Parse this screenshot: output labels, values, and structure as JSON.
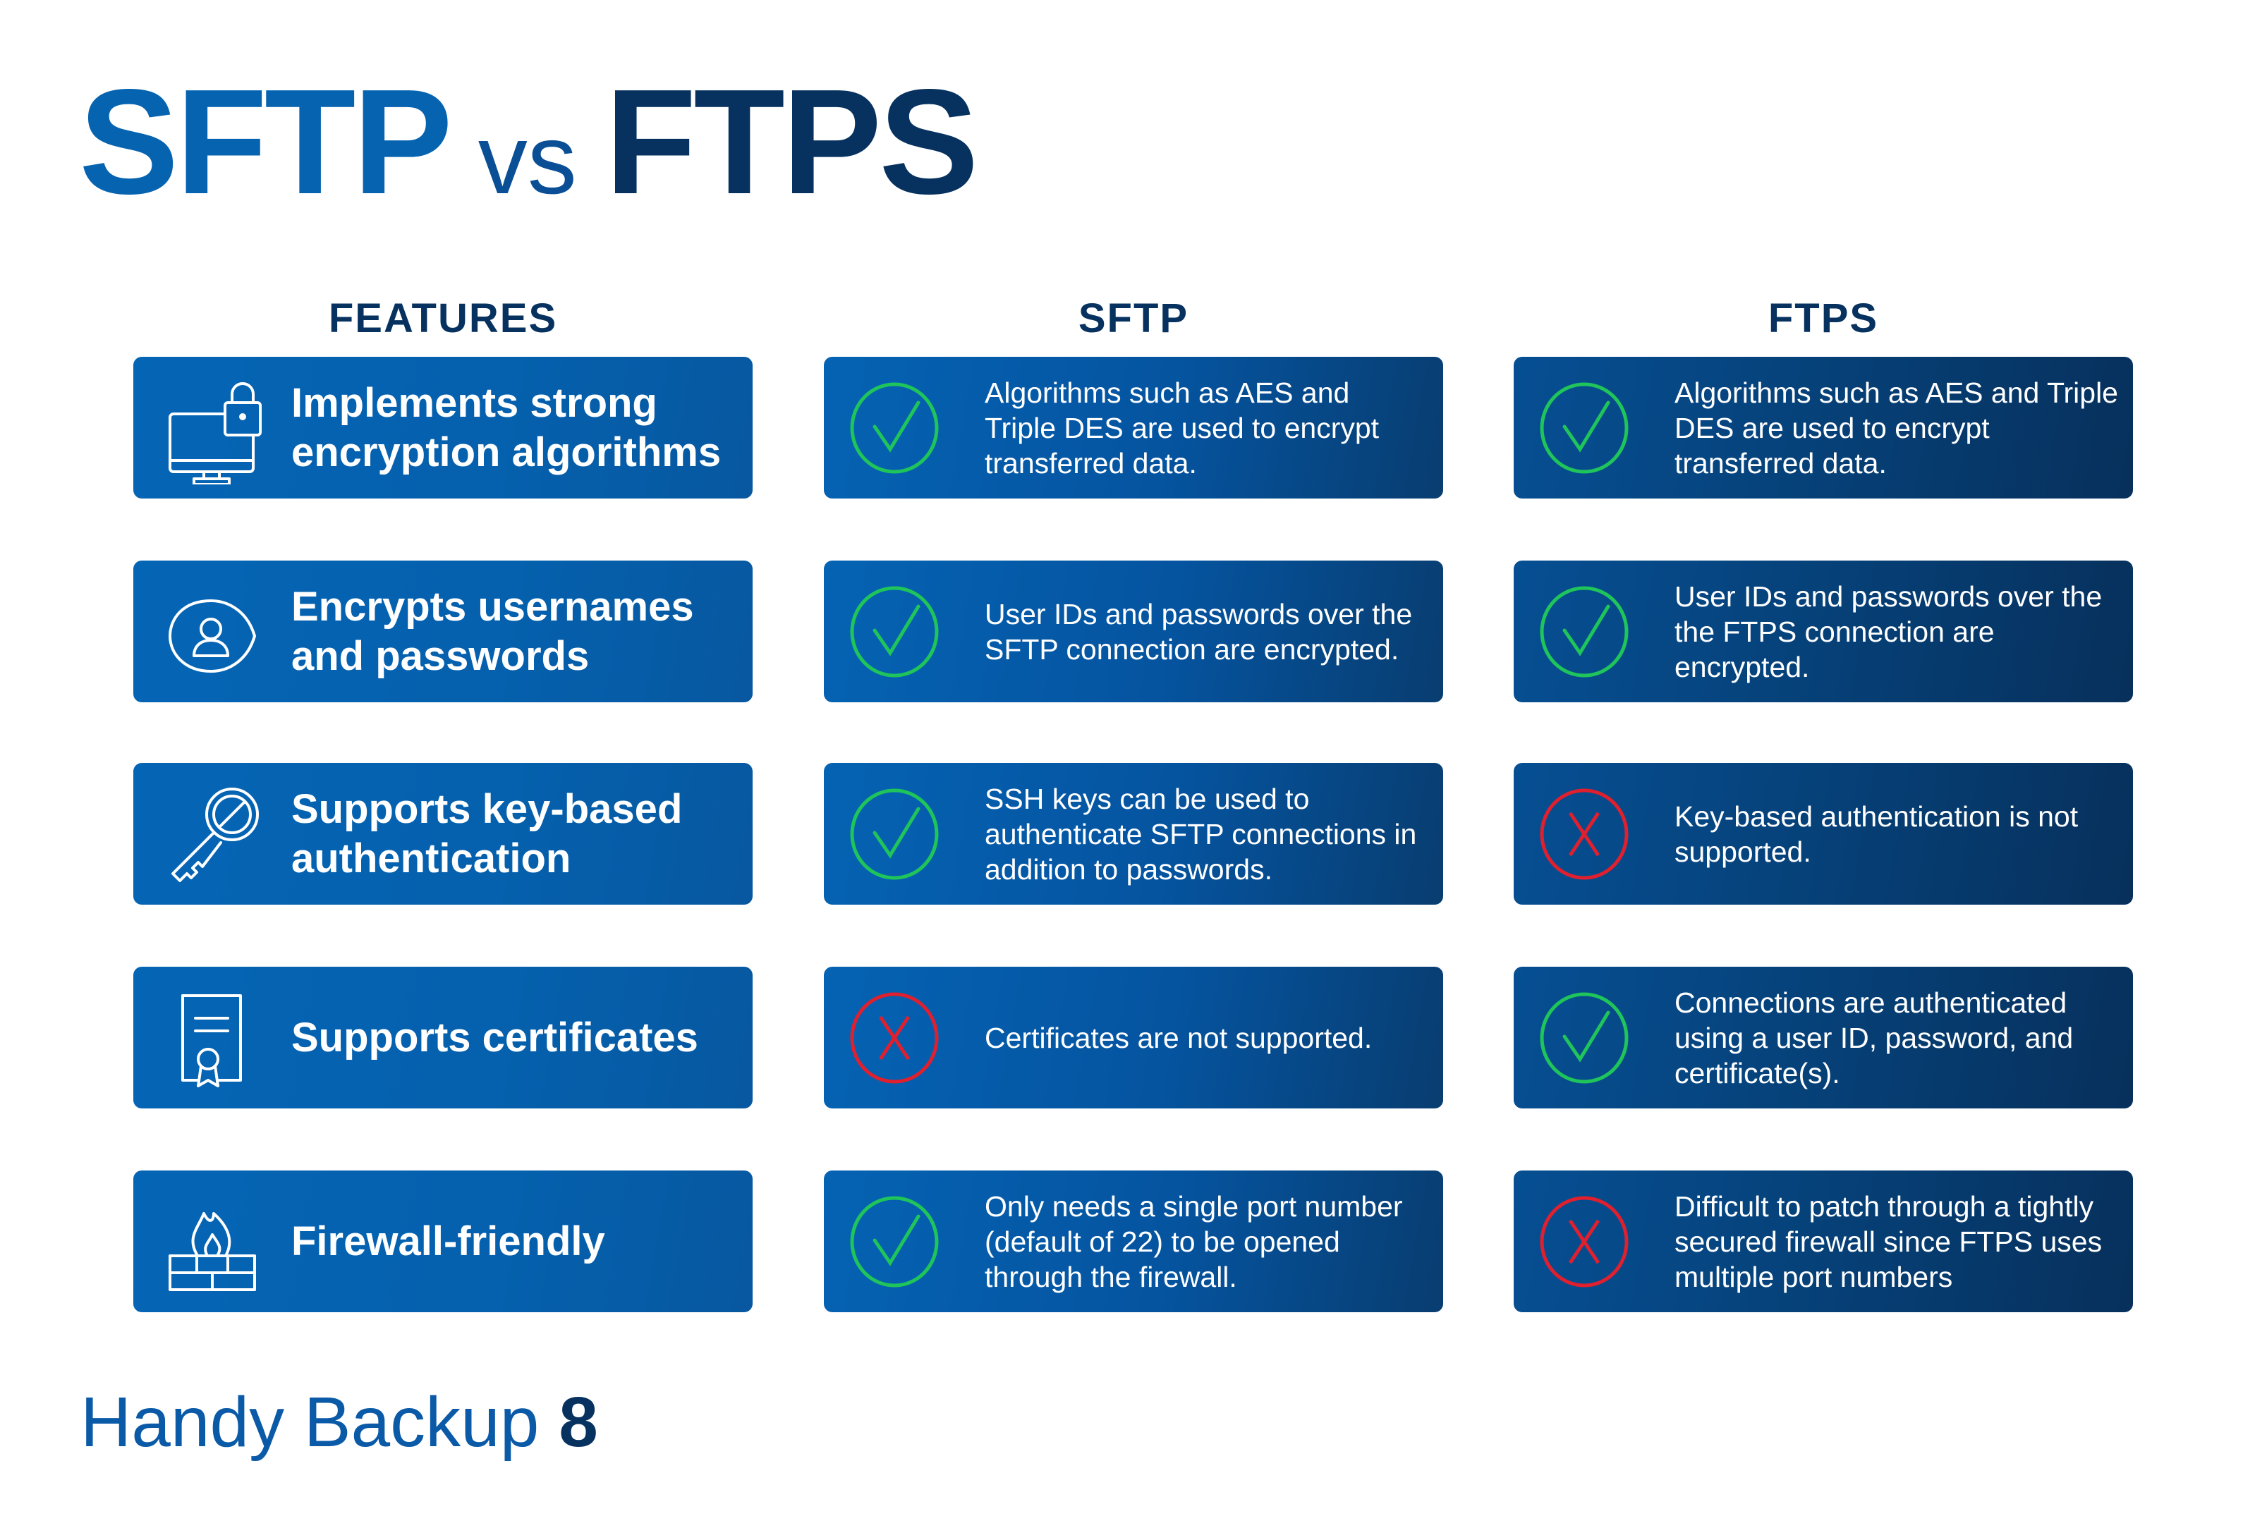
{
  "title": {
    "left": "SFTP",
    "middle": "vs",
    "right": "FTPS"
  },
  "colors": {
    "sftp_blue": "#0563b0",
    "ftps_navy": "#07325f",
    "check_green": "#1fc55a",
    "cross_red": "#e0202e"
  },
  "columns": {
    "features": "FEATURES",
    "sftp": "SFTP",
    "ftps": "FTPS"
  },
  "rows": [
    {
      "icon": "monitor-lock-icon",
      "feature": "Implements strong encryption algorithms",
      "sftp": {
        "supported": true,
        "text": "Algorithms such as AES and Triple DES are used to encrypt transferred data."
      },
      "ftps": {
        "supported": true,
        "text": "Algorithms such as AES and Triple DES are used to encrypt transferred data."
      }
    },
    {
      "icon": "user-shield-icon",
      "feature": "Encrypts usernames and passwords",
      "sftp": {
        "supported": true,
        "text": "User IDs and passwords over the SFTP connection are encrypted."
      },
      "ftps": {
        "supported": true,
        "text": "User IDs and passwords over the the FTPS connection are encrypted."
      }
    },
    {
      "icon": "key-icon",
      "feature": "Supports key-based authentication",
      "sftp": {
        "supported": true,
        "text": "SSH keys can be used to authenticate SFTP connections in addition to passwords."
      },
      "ftps": {
        "supported": false,
        "text": "Key-based authentication is not supported."
      }
    },
    {
      "icon": "certificate-icon",
      "feature": "Supports certificates",
      "sftp": {
        "supported": false,
        "text": "Certificates are not supported."
      },
      "ftps": {
        "supported": true,
        "text": "Connections are authenticated using a user ID, password, and certificate(s)."
      }
    },
    {
      "icon": "firewall-icon",
      "feature": "Firewall-friendly",
      "sftp": {
        "supported": true,
        "text": "Only needs a single port number (default of 22) to be opened through the firewall."
      },
      "ftps": {
        "supported": false,
        "text": "Difficult to patch through a tightly secured firewall since FTPS uses multiple port numbers"
      }
    }
  ],
  "footer": {
    "brand": "Handy Backup",
    "version": "8"
  }
}
